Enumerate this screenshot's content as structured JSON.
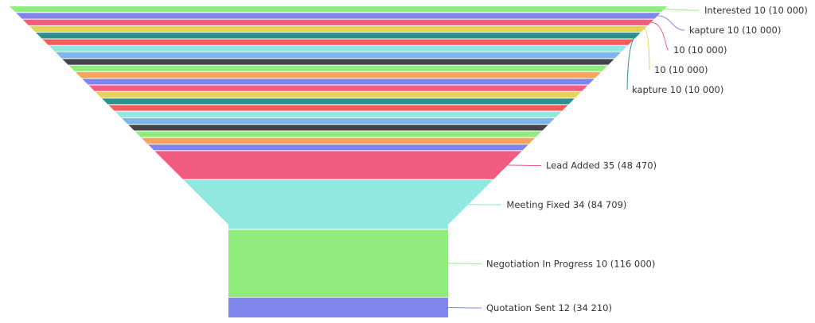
{
  "chart_data": {
    "type": "funnel",
    "stages": [
      {
        "label": "Interested 10 (10 000)",
        "value": 10000,
        "color": "#90ed7d"
      },
      {
        "label": "kapture 10 (10 000)",
        "value": 10000,
        "color": "#8085e9"
      },
      {
        "label": "10 (10 000)",
        "value": 10000,
        "color": "#f15c80"
      },
      {
        "label": "10 (10 000)",
        "value": 10000,
        "color": "#e4d354"
      },
      {
        "label": "kapture 10 (10 000)",
        "value": 10000,
        "color": "#2b908f"
      },
      {
        "label": "",
        "value": 10000,
        "color": "#f45b5b"
      },
      {
        "label": "",
        "value": 10000,
        "color": "#91e8e1"
      },
      {
        "label": "",
        "value": 10000,
        "color": "#7cb5ec"
      },
      {
        "label": "",
        "value": 10000,
        "color": "#434348"
      },
      {
        "label": "",
        "value": 10000,
        "color": "#90ed7d"
      },
      {
        "label": "",
        "value": 10000,
        "color": "#f7a35c"
      },
      {
        "label": "",
        "value": 10000,
        "color": "#8085e9"
      },
      {
        "label": "",
        "value": 10000,
        "color": "#f15c80"
      },
      {
        "label": "",
        "value": 10000,
        "color": "#e4d354"
      },
      {
        "label": "",
        "value": 10000,
        "color": "#2b908f"
      },
      {
        "label": "",
        "value": 10000,
        "color": "#f45b5b"
      },
      {
        "label": "",
        "value": 10000,
        "color": "#91e8e1"
      },
      {
        "label": "",
        "value": 10000,
        "color": "#7cb5ec"
      },
      {
        "label": "",
        "value": 10000,
        "color": "#434348"
      },
      {
        "label": "",
        "value": 10000,
        "color": "#90ed7d"
      },
      {
        "label": "",
        "value": 10000,
        "color": "#f7a35c"
      },
      {
        "label": "",
        "value": 10000,
        "color": "#8085e9"
      },
      {
        "label": "Lead Added 35 (48 470)",
        "value": 48470,
        "color": "#f15c80"
      },
      {
        "label": "Meeting Fixed 34 (84 709)",
        "value": 84709,
        "color": "#91e8e1"
      },
      {
        "label": "Negotiation In Progress 10 (116 000)",
        "value": 116000,
        "color": "#90ed7d"
      },
      {
        "label": "Quotation Sent 12 (34 210)",
        "value": 34210,
        "color": "#8085e9"
      }
    ]
  }
}
